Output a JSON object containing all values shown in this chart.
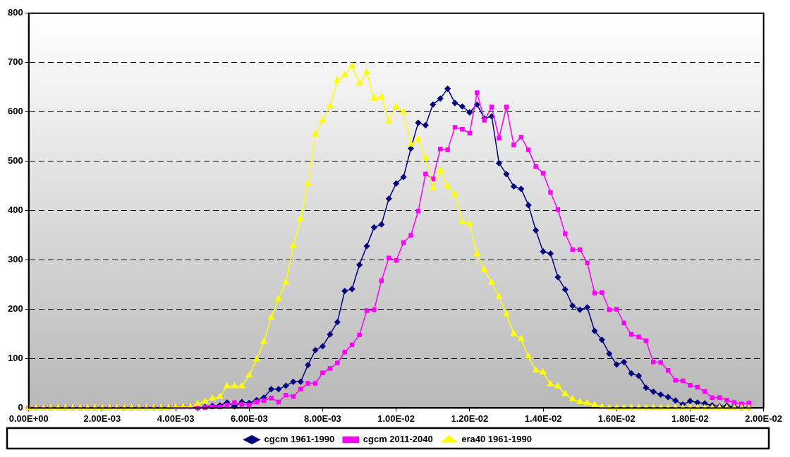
{
  "chart_data": {
    "type": "line",
    "x": [
      0,
      0.0002,
      0.0004,
      0.0006,
      0.0008,
      0.001,
      0.0012,
      0.0014,
      0.0016,
      0.0018,
      0.002,
      0.0022,
      0.0024,
      0.0026,
      0.0028,
      0.003,
      0.0032,
      0.0034,
      0.0036,
      0.0038,
      0.004,
      0.0042,
      0.0044,
      0.0046,
      0.0048,
      0.005,
      0.0052,
      0.0054,
      0.0056,
      0.0058,
      0.006,
      0.0062,
      0.0064,
      0.0066,
      0.0068,
      0.007,
      0.0072,
      0.0074,
      0.0076,
      0.0078,
      0.008,
      0.0082,
      0.0084,
      0.0086,
      0.0088,
      0.009,
      0.0092,
      0.0094,
      0.0096,
      0.0098,
      0.01,
      0.0102,
      0.0104,
      0.0106,
      0.0108,
      0.011,
      0.0112,
      0.0114,
      0.0116,
      0.0118,
      0.012,
      0.0122,
      0.0124,
      0.0126,
      0.0128,
      0.013,
      0.0132,
      0.0134,
      0.0136,
      0.0138,
      0.014,
      0.0142,
      0.0144,
      0.0146,
      0.0148,
      0.015,
      0.0152,
      0.0154,
      0.0156,
      0.0158,
      0.016,
      0.0162,
      0.0164,
      0.0166,
      0.0168,
      0.017,
      0.0172,
      0.0174,
      0.0176,
      0.0178,
      0.018,
      0.0182,
      0.0184,
      0.0186,
      0.0188,
      0.019,
      0.0192,
      0.0194,
      0.0196
    ],
    "series": [
      {
        "name": "cgcm 1961-1990",
        "color": "#000080",
        "marker": "diamond",
        "values": [
          null,
          null,
          null,
          null,
          null,
          null,
          null,
          null,
          null,
          null,
          null,
          null,
          null,
          null,
          null,
          null,
          null,
          null,
          null,
          null,
          null,
          null,
          null,
          0,
          2,
          4,
          5,
          11,
          3,
          12,
          10,
          16,
          21,
          38,
          38,
          45,
          53,
          53,
          87,
          117,
          125,
          149,
          174,
          237,
          241,
          290,
          328,
          366,
          372,
          424,
          455,
          468,
          526,
          578,
          573,
          615,
          627,
          647,
          618,
          611,
          599,
          615,
          587,
          591,
          496,
          474,
          449,
          444,
          411,
          360,
          317,
          313,
          265,
          240,
          207,
          199,
          204,
          156,
          138,
          110,
          88,
          93,
          70,
          65,
          41,
          33,
          27,
          22,
          15,
          7,
          14,
          11,
          9,
          5,
          3,
          4,
          2,
          1,
          1
        ]
      },
      {
        "name": "cgcm 2011-2040",
        "color": "#ff00ff",
        "marker": "square",
        "values": [
          0,
          0,
          0,
          0,
          0,
          0,
          0,
          0,
          0,
          0,
          0,
          0,
          0,
          0,
          0,
          0,
          0,
          0,
          0,
          0,
          2,
          2,
          2,
          1,
          1,
          2,
          2,
          6,
          11,
          7,
          6,
          12,
          15,
          20,
          12,
          26,
          23,
          38,
          50,
          50,
          71,
          80,
          91,
          113,
          128,
          148,
          197,
          199,
          258,
          304,
          299,
          335,
          350,
          399,
          474,
          464,
          525,
          523,
          569,
          565,
          557,
          639,
          583,
          610,
          547,
          610,
          533,
          549,
          523,
          489,
          476,
          437,
          402,
          353,
          321,
          321,
          294,
          233,
          234,
          199,
          200,
          172,
          149,
          144,
          136,
          93,
          92,
          76,
          56,
          55,
          46,
          42,
          33,
          21,
          21,
          16,
          11,
          8,
          10
        ]
      },
      {
        "name": "era40 1961-1990",
        "color": "#ffff00",
        "marker": "triangle",
        "values": [
          0,
          0,
          0,
          0,
          0,
          0,
          0,
          0,
          0,
          0,
          0,
          0,
          0,
          0,
          0,
          0,
          0,
          0,
          0,
          0,
          2,
          2,
          2,
          8,
          13,
          19,
          22,
          44,
          44,
          44,
          66,
          98,
          134,
          183,
          221,
          254,
          329,
          383,
          455,
          555,
          583,
          612,
          664,
          675,
          693,
          658,
          680,
          627,
          630,
          580,
          610,
          600,
          534,
          544,
          507,
          446,
          481,
          449,
          433,
          377,
          373,
          312,
          280,
          254,
          225,
          190,
          150,
          140,
          104,
          76,
          72,
          48,
          44,
          28,
          18,
          12,
          10,
          6,
          2,
          0,
          0,
          0,
          0,
          0,
          0,
          0,
          0,
          0,
          0,
          0,
          0,
          0,
          0,
          0,
          0,
          0,
          0,
          0,
          0
        ]
      }
    ],
    "xlim": [
      0,
      0.02
    ],
    "xticks": [
      {
        "value": 0,
        "label": "0.00E+00"
      },
      {
        "value": 0.002,
        "label": "2.00E-03"
      },
      {
        "value": 0.004,
        "label": "4.00E-03"
      },
      {
        "value": 0.006,
        "label": "6.00E-03"
      },
      {
        "value": 0.008,
        "label": "8.00E-03"
      },
      {
        "value": 0.01,
        "label": "1.00E-02"
      },
      {
        "value": 0.012,
        "label": "1.20E-02"
      },
      {
        "value": 0.014,
        "label": "1.40E-02"
      },
      {
        "value": 0.016,
        "label": "1.60E-02"
      },
      {
        "value": 0.018,
        "label": "1.80E-02"
      },
      {
        "value": 0.02,
        "label": "2.00E-02"
      }
    ],
    "ylim": [
      0,
      800
    ],
    "yticks": [
      0,
      100,
      200,
      300,
      400,
      500,
      600,
      700,
      800
    ],
    "grid": "y",
    "legend": "bottom",
    "line_style": "solid"
  }
}
